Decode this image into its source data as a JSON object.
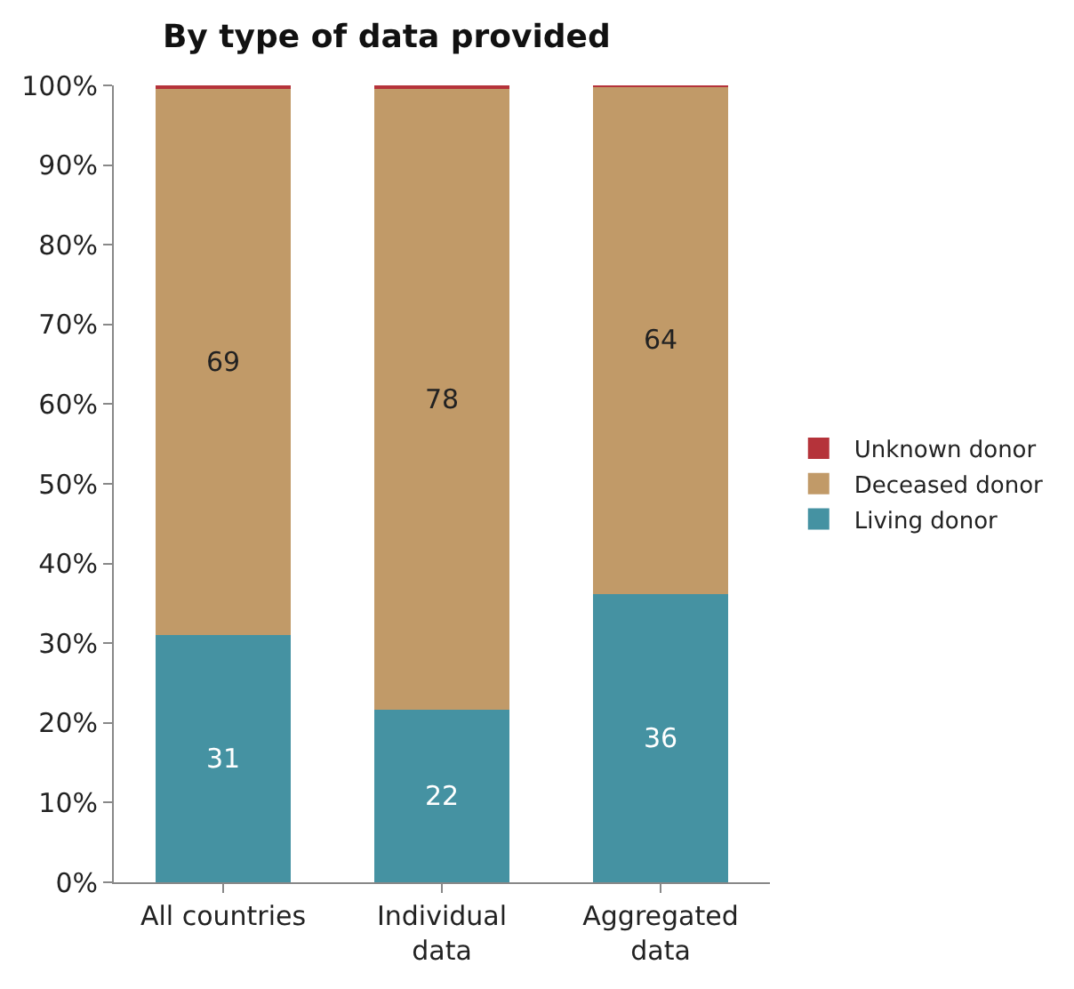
{
  "chart_data": {
    "type": "bar",
    "title": "By type of data provided",
    "stacked": true,
    "categories": [
      "All countries",
      "Individual data",
      "Aggregated data"
    ],
    "series": [
      {
        "name": "Living donor",
        "color": "#4592a2",
        "values": [
          31.0,
          21.6,
          36.2
        ],
        "value_labels": [
          "31",
          "22",
          "36"
        ]
      },
      {
        "name": "Deceased donor",
        "color": "#c19a68",
        "values": [
          68.6,
          77.9,
          63.7
        ],
        "value_labels": [
          "69",
          "78",
          "64"
        ]
      },
      {
        "name": "Unknown donor",
        "color": "#b5333a",
        "values": [
          0.4,
          0.5,
          0.1
        ],
        "value_labels": [
          null,
          null,
          null
        ]
      }
    ],
    "ylim": [
      0,
      100
    ],
    "yticks": [
      {
        "value": 0,
        "label": "0%"
      },
      {
        "value": 10,
        "label": "10%"
      },
      {
        "value": 20,
        "label": "20%"
      },
      {
        "value": 30,
        "label": "30%"
      },
      {
        "value": 40,
        "label": "40%"
      },
      {
        "value": 50,
        "label": "50%"
      },
      {
        "value": 60,
        "label": "60%"
      },
      {
        "value": 70,
        "label": "70%"
      },
      {
        "value": 80,
        "label": "80%"
      },
      {
        "value": 90,
        "label": "90%"
      },
      {
        "value": 100,
        "label": "100%"
      }
    ],
    "legend": "right"
  }
}
